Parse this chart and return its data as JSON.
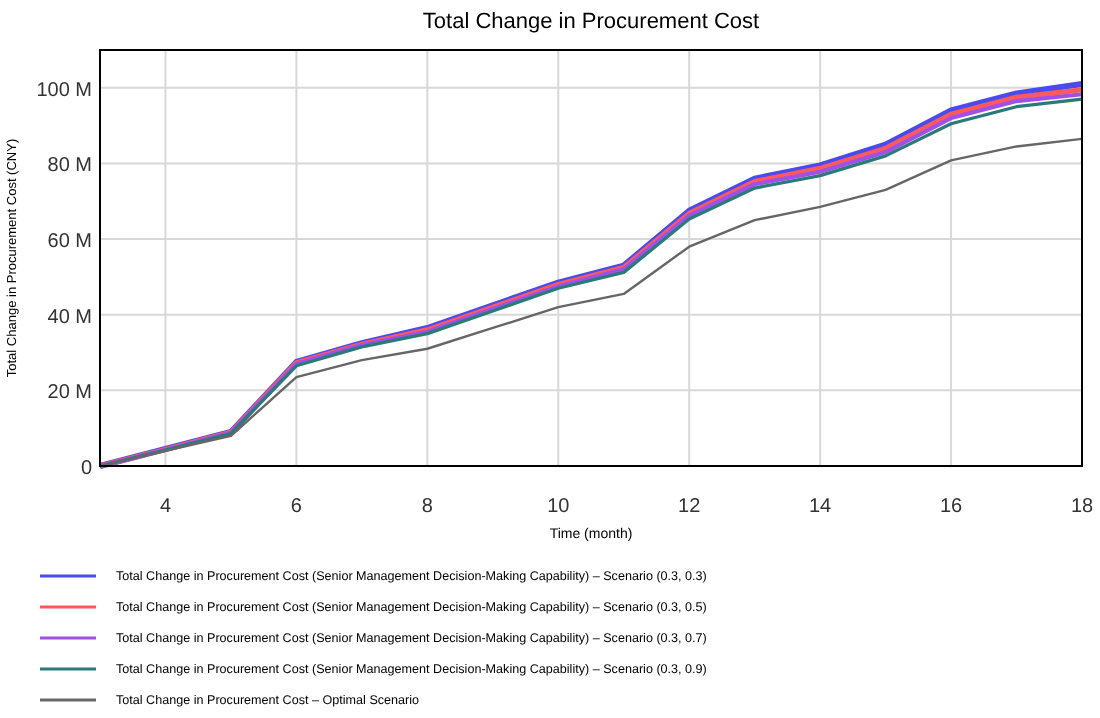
{
  "chart_data": {
    "type": "line",
    "title": "Total Change in Procurement Cost",
    "xlabel": "Time (month)",
    "ylabel": "Total Change in Procurement Cost (CNY)",
    "x": [
      3,
      4,
      5,
      6,
      7,
      8,
      9,
      10,
      11,
      12,
      13,
      14,
      15,
      16,
      17,
      18
    ],
    "xlim": [
      3,
      18
    ],
    "xticks": [
      4,
      6,
      8,
      10,
      12,
      14,
      16,
      18
    ],
    "ylim": [
      0,
      110
    ],
    "yticks": [
      {
        "value": 0,
        "label": "0"
      },
      {
        "value": 20,
        "label": "20 M"
      },
      {
        "value": 40,
        "label": "40 M"
      },
      {
        "value": 60,
        "label": "60 M"
      },
      {
        "value": 80,
        "label": "80 M"
      },
      {
        "value": 100,
        "label": "100 M"
      }
    ],
    "grid": true,
    "legend": "bottom",
    "line_style": "solid",
    "series": [
      {
        "name": "Total Change in Procurement Cost (Senior Management Decision-Making Capability) – Scenario (0.3, 0.3)",
        "color": "#4a4af0",
        "values": [
          0,
          4.5,
          9,
          27.5,
          32.5,
          36.5,
          42.5,
          48.5,
          53,
          67.5,
          76,
          79.5,
          85,
          94,
          98.5,
          101
        ]
      },
      {
        "name": "Total Change in Procurement Cost (Senior Management Decision-Making Capability) – Scenario (0.3, 0.5)",
        "color": "#ff5a5a",
        "values": [
          0,
          4.4,
          8.9,
          27.3,
          32.2,
          36,
          42,
          48,
          52.5,
          66.8,
          75.2,
          78.7,
          84,
          93,
          97.5,
          99.5
        ]
      },
      {
        "name": "Total Change in Procurement Cost (Senior Management Decision-Making Capability) – Scenario (0.3, 0.7)",
        "color": "#a050e8",
        "values": [
          0,
          4.3,
          8.8,
          27,
          32,
          35.5,
          41.5,
          47.5,
          52,
          66.2,
          74.5,
          77.8,
          83,
          92,
          96.5,
          98.3
        ]
      },
      {
        "name": "Total Change in Procurement Cost (Senior Management Decision-Making Capability) – Scenario (0.3, 0.9)",
        "color": "#2a7a7a",
        "values": [
          0,
          4.2,
          8.6,
          26.5,
          31.5,
          35,
          41,
          47,
          51.2,
          65.3,
          73.5,
          76.8,
          82,
          90.5,
          95,
          97
        ]
      },
      {
        "name": "Total Change in Procurement Cost – Optimal Scenario",
        "color": "#666666",
        "values": [
          0,
          4,
          8,
          23.5,
          28,
          31,
          36.5,
          42,
          45.5,
          58,
          65,
          68.5,
          73,
          80.8,
          84.5,
          86.5
        ]
      }
    ]
  }
}
